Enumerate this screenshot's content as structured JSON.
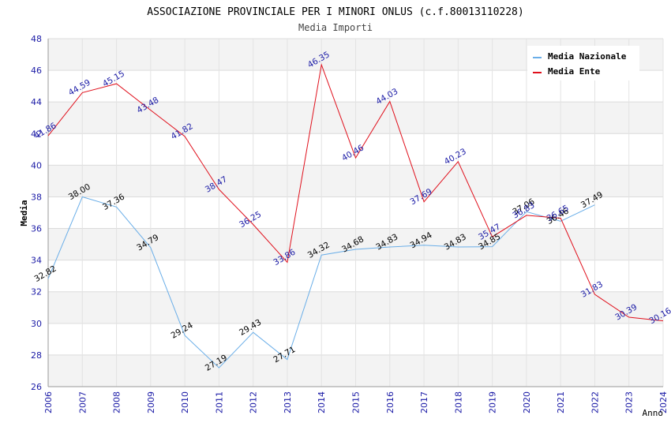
{
  "chart_data": {
    "type": "line",
    "title": "ASSOCIAZIONE PROVINCIALE PER I MINORI ONLUS (c.f.80013110228)",
    "subtitle": "Media Importi",
    "xlabel": "Anno",
    "ylabel": "Media",
    "ylim": [
      26,
      48
    ],
    "yticks": [
      26,
      28,
      30,
      32,
      34,
      36,
      38,
      40,
      42,
      44,
      46,
      48
    ],
    "x": [
      2006,
      2007,
      2008,
      2009,
      2010,
      2011,
      2012,
      2013,
      2014,
      2015,
      2016,
      2017,
      2018,
      2019,
      2020,
      2021,
      2022,
      2023,
      2024
    ],
    "legend_position": "top-right",
    "grid": true,
    "series": [
      {
        "name": "Media Nazionale",
        "color": "#6aaee8",
        "label_color": "#000000",
        "x": [
          2006,
          2007,
          2008,
          2009,
          2010,
          2011,
          2012,
          2013,
          2014,
          2015,
          2016,
          2017,
          2018,
          2019,
          2020,
          2021,
          2022
        ],
        "values": [
          32.82,
          38.0,
          37.36,
          34.79,
          29.24,
          27.19,
          29.43,
          27.71,
          34.32,
          34.68,
          34.83,
          34.94,
          34.83,
          34.85,
          37.06,
          36.46,
          37.49
        ],
        "labels": [
          "32.82",
          "38.00",
          "37.36",
          "34.79",
          "29.24",
          "27.19",
          "29.43",
          "27.71",
          "34.32",
          "34.68",
          "34.83",
          "34.94",
          "34.83",
          "34.85",
          "37.06",
          "36.46",
          "37.49"
        ]
      },
      {
        "name": "Media Ente",
        "color": "#e0101c",
        "label_color": "#1a1aa6",
        "x": [
          2006,
          2007,
          2008,
          2009,
          2010,
          2011,
          2012,
          2013,
          2014,
          2015,
          2016,
          2017,
          2018,
          2019,
          2020,
          2021,
          2022,
          2023,
          2024
        ],
        "values": [
          41.86,
          44.59,
          45.15,
          43.48,
          41.82,
          38.47,
          36.25,
          33.86,
          46.35,
          40.46,
          44.03,
          37.69,
          40.23,
          35.47,
          36.83,
          36.65,
          31.83,
          30.39,
          30.16
        ],
        "labels": [
          "41.86",
          "44.59",
          "45.15",
          "43.48",
          "41.82",
          "38.47",
          "36.25",
          "33.86",
          "46.35",
          "40.46",
          "44.03",
          "37.69",
          "40.23",
          "35.47",
          "36.83",
          "36.65",
          "31.83",
          "30.39",
          "30.16"
        ]
      }
    ]
  }
}
